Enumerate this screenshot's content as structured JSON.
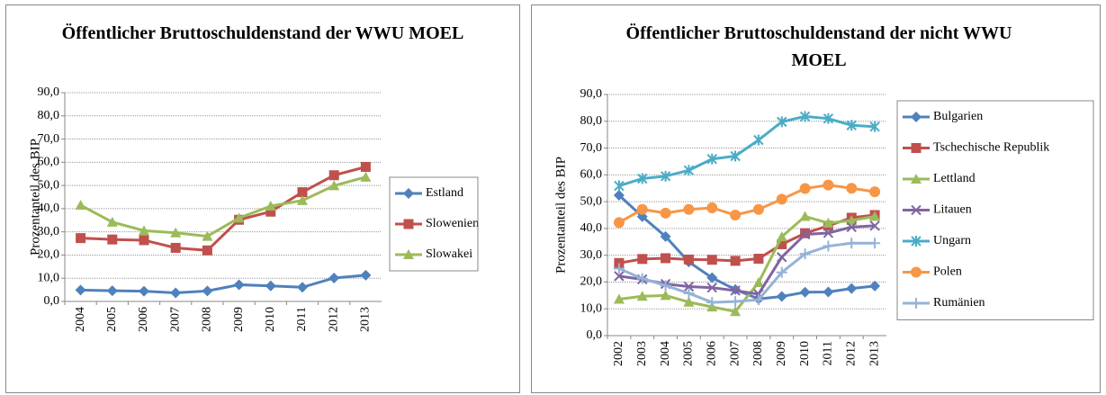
{
  "chart_data": [
    {
      "type": "line",
      "title": "Öffentlicher Bruttoschuldenstand der WWU MOEL",
      "y_label": "Prozentanteil des BIP",
      "categories": [
        "2004",
        "2005",
        "2006",
        "2007",
        "2008",
        "2009",
        "2010",
        "2011",
        "2012",
        "2013"
      ],
      "series": [
        {
          "name": "Estland",
          "color": "#4f81bd",
          "marker": "diamond",
          "values": [
            4.9,
            4.6,
            4.4,
            3.7,
            4.5,
            7.2,
            6.7,
            6.1,
            10.1,
            11.3
          ]
        },
        {
          "name": "Slowenien",
          "color": "#c0504d",
          "marker": "square",
          "values": [
            27.3,
            26.7,
            26.4,
            23.1,
            22.0,
            35.2,
            38.7,
            47.1,
            54.4,
            58.0
          ]
        },
        {
          "name": "Slowakei",
          "color": "#9bbb59",
          "marker": "triangle",
          "values": [
            41.5,
            34.2,
            30.5,
            29.6,
            28.1,
            36.0,
            41.1,
            43.5,
            49.9,
            53.6
          ]
        }
      ],
      "ylim": [
        0,
        90
      ],
      "yticks": [
        {
          "value": 0,
          "label": "0,0"
        },
        {
          "value": 10,
          "label": "10,0"
        },
        {
          "value": 20,
          "label": "20,0"
        },
        {
          "value": 30,
          "label": "30,0"
        },
        {
          "value": 40,
          "label": "40,0"
        },
        {
          "value": 50,
          "label": "50,0"
        },
        {
          "value": 60,
          "label": "60,0"
        },
        {
          "value": 70,
          "label": "70,0"
        },
        {
          "value": 80,
          "label": "80,0"
        },
        {
          "value": 90,
          "label": "90,0"
        }
      ],
      "grid": true,
      "legend": "right"
    },
    {
      "type": "line",
      "title": "Öffentlicher Bruttoschuldenstand der nicht WWU MOEL",
      "y_label": "Prozentanteil des BIP",
      "categories": [
        "2002",
        "2003",
        "2004",
        "2005",
        "2006",
        "2007",
        "2008",
        "2009",
        "2010",
        "2011",
        "2012",
        "2013"
      ],
      "series": [
        {
          "name": "Bulgarien",
          "color": "#4f81bd",
          "marker": "diamond",
          "values": [
            52.4,
            44.4,
            37.0,
            27.5,
            21.6,
            17.2,
            13.7,
            14.6,
            16.2,
            16.3,
            17.6,
            18.5
          ]
        },
        {
          "name": "Tschechische Republik",
          "color": "#c0504d",
          "marker": "square",
          "values": [
            27.1,
            28.6,
            28.9,
            28.4,
            28.3,
            27.9,
            28.7,
            34.1,
            38.2,
            41.0,
            44.0,
            45.0
          ]
        },
        {
          "name": "Lettland",
          "color": "#9bbb59",
          "marker": "triangle",
          "values": [
            13.6,
            14.7,
            15.0,
            12.5,
            10.7,
            9.0,
            19.8,
            36.9,
            44.5,
            42.0,
            43.0,
            44.5
          ]
        },
        {
          "name": "Litauen",
          "color": "#8064a2",
          "marker": "x",
          "values": [
            22.2,
            21.0,
            19.3,
            18.3,
            17.9,
            16.8,
            15.5,
            29.3,
            37.8,
            38.3,
            40.5,
            41.0
          ]
        },
        {
          "name": "Ungarn",
          "color": "#4bacc6",
          "marker": "star",
          "values": [
            55.9,
            58.6,
            59.5,
            61.7,
            65.9,
            67.0,
            73.0,
            79.8,
            81.8,
            81.0,
            78.5,
            78.0
          ]
        },
        {
          "name": "Polen",
          "color": "#f79646",
          "marker": "circle",
          "values": [
            42.2,
            47.1,
            45.7,
            47.1,
            47.7,
            45.0,
            47.1,
            50.9,
            54.9,
            56.2,
            55.0,
            53.7
          ]
        },
        {
          "name": "Rumänien",
          "color": "#95b3d7",
          "marker": "plus",
          "values": [
            25.0,
            21.3,
            18.7,
            15.8,
            12.4,
            12.7,
            13.4,
            23.6,
            30.5,
            33.4,
            34.5,
            34.5
          ]
        }
      ],
      "ylim": [
        0,
        90
      ],
      "yticks": [
        {
          "value": 0,
          "label": "0,0"
        },
        {
          "value": 10,
          "label": "10,0"
        },
        {
          "value": 20,
          "label": "20,0"
        },
        {
          "value": 30,
          "label": "30,0"
        },
        {
          "value": 40,
          "label": "40,0"
        },
        {
          "value": 50,
          "label": "50,0"
        },
        {
          "value": 60,
          "label": "60,0"
        },
        {
          "value": 70,
          "label": "70,0"
        },
        {
          "value": 80,
          "label": "80,0"
        },
        {
          "value": 90,
          "label": "90,0"
        }
      ],
      "grid": true,
      "legend": "right"
    }
  ]
}
